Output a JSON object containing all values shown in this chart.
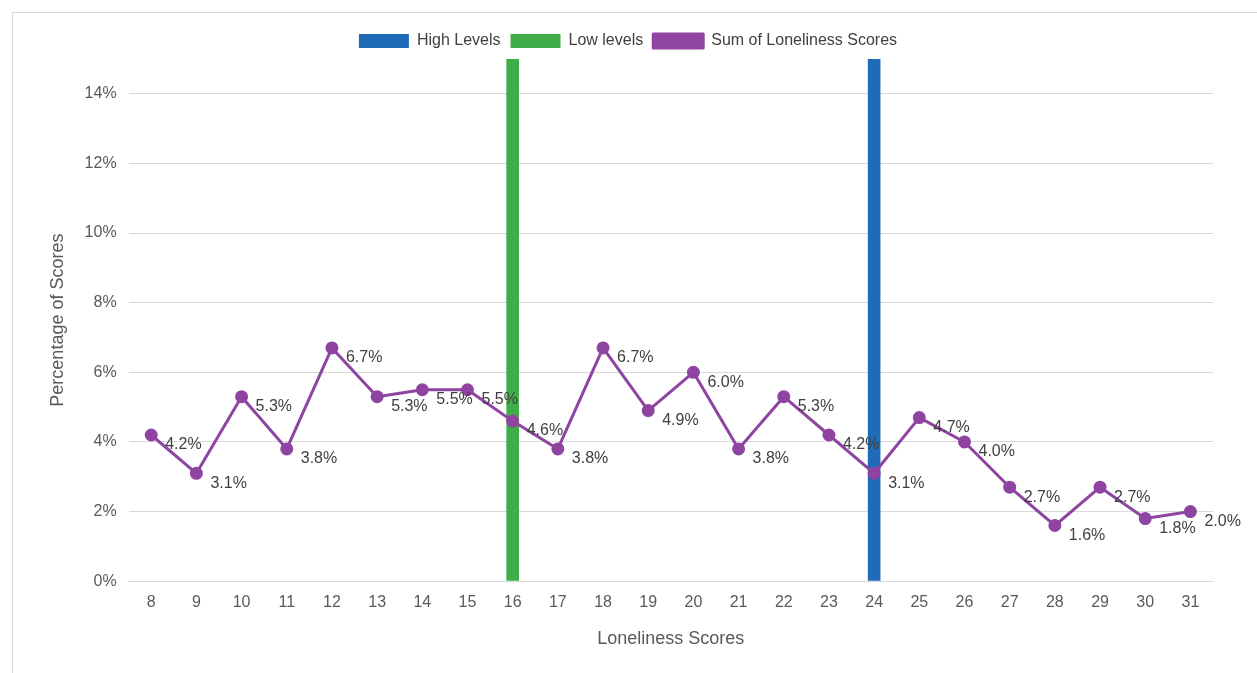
{
  "chart_data": {
    "type": "line",
    "xlabel": "Loneliness Scores",
    "ylabel": "Percentage of Scores",
    "categories": [
      "8",
      "9",
      "10",
      "11",
      "12",
      "13",
      "14",
      "15",
      "16",
      "17",
      "18",
      "19",
      "20",
      "21",
      "22",
      "23",
      "24",
      "25",
      "26",
      "27",
      "28",
      "29",
      "30",
      "31"
    ],
    "series": [
      {
        "name": "High Levels",
        "type": "bar",
        "color": "#1f6bb8",
        "values": [
          null,
          null,
          null,
          null,
          null,
          null,
          null,
          null,
          null,
          null,
          null,
          null,
          null,
          null,
          null,
          null,
          15,
          null,
          null,
          null,
          null,
          null,
          null,
          null
        ]
      },
      {
        "name": "Low levels",
        "type": "bar",
        "color": "#3fae49",
        "values": [
          null,
          null,
          null,
          null,
          null,
          null,
          null,
          null,
          15,
          null,
          null,
          null,
          null,
          null,
          null,
          null,
          null,
          null,
          null,
          null,
          null,
          null,
          null,
          null
        ]
      },
      {
        "name": "Sum of Loneliness Scores",
        "color": "#8e44a0",
        "values": [
          4.2,
          3.1,
          5.3,
          3.8,
          6.7,
          5.3,
          5.5,
          5.5,
          4.6,
          3.8,
          6.7,
          4.9,
          6.0,
          3.8,
          5.3,
          4.2,
          3.1,
          4.7,
          4.0,
          2.7,
          1.6,
          2.7,
          1.8,
          2.0
        ],
        "value_labels": [
          "4.2%",
          "3.1%",
          "5.3%",
          "3.8%",
          "6.7%",
          "5.3%",
          "5.5%",
          "5.5%",
          "4.6%",
          "3.8%",
          "6.7%",
          "4.9%",
          "6.0%",
          "3.8%",
          "5.3%",
          "4.2%",
          "3.1%",
          "4.7%",
          "4.0%",
          "2.7%",
          "1.6%",
          "2.7%",
          "1.8%",
          "2.0%"
        ]
      }
    ],
    "ylim": [
      0,
      15
    ],
    "yticks": [
      {
        "value": 0,
        "label": "0%"
      },
      {
        "value": 2,
        "label": "2%"
      },
      {
        "value": 4,
        "label": "4%"
      },
      {
        "value": 6,
        "label": "6%"
      },
      {
        "value": 8,
        "label": "8%"
      },
      {
        "value": 10,
        "label": "10%"
      },
      {
        "value": 12,
        "label": "12%"
      },
      {
        "value": 14,
        "label": "14%"
      }
    ],
    "grid": "y",
    "legend": "top",
    "marker": "circle",
    "line_style": "solid"
  }
}
